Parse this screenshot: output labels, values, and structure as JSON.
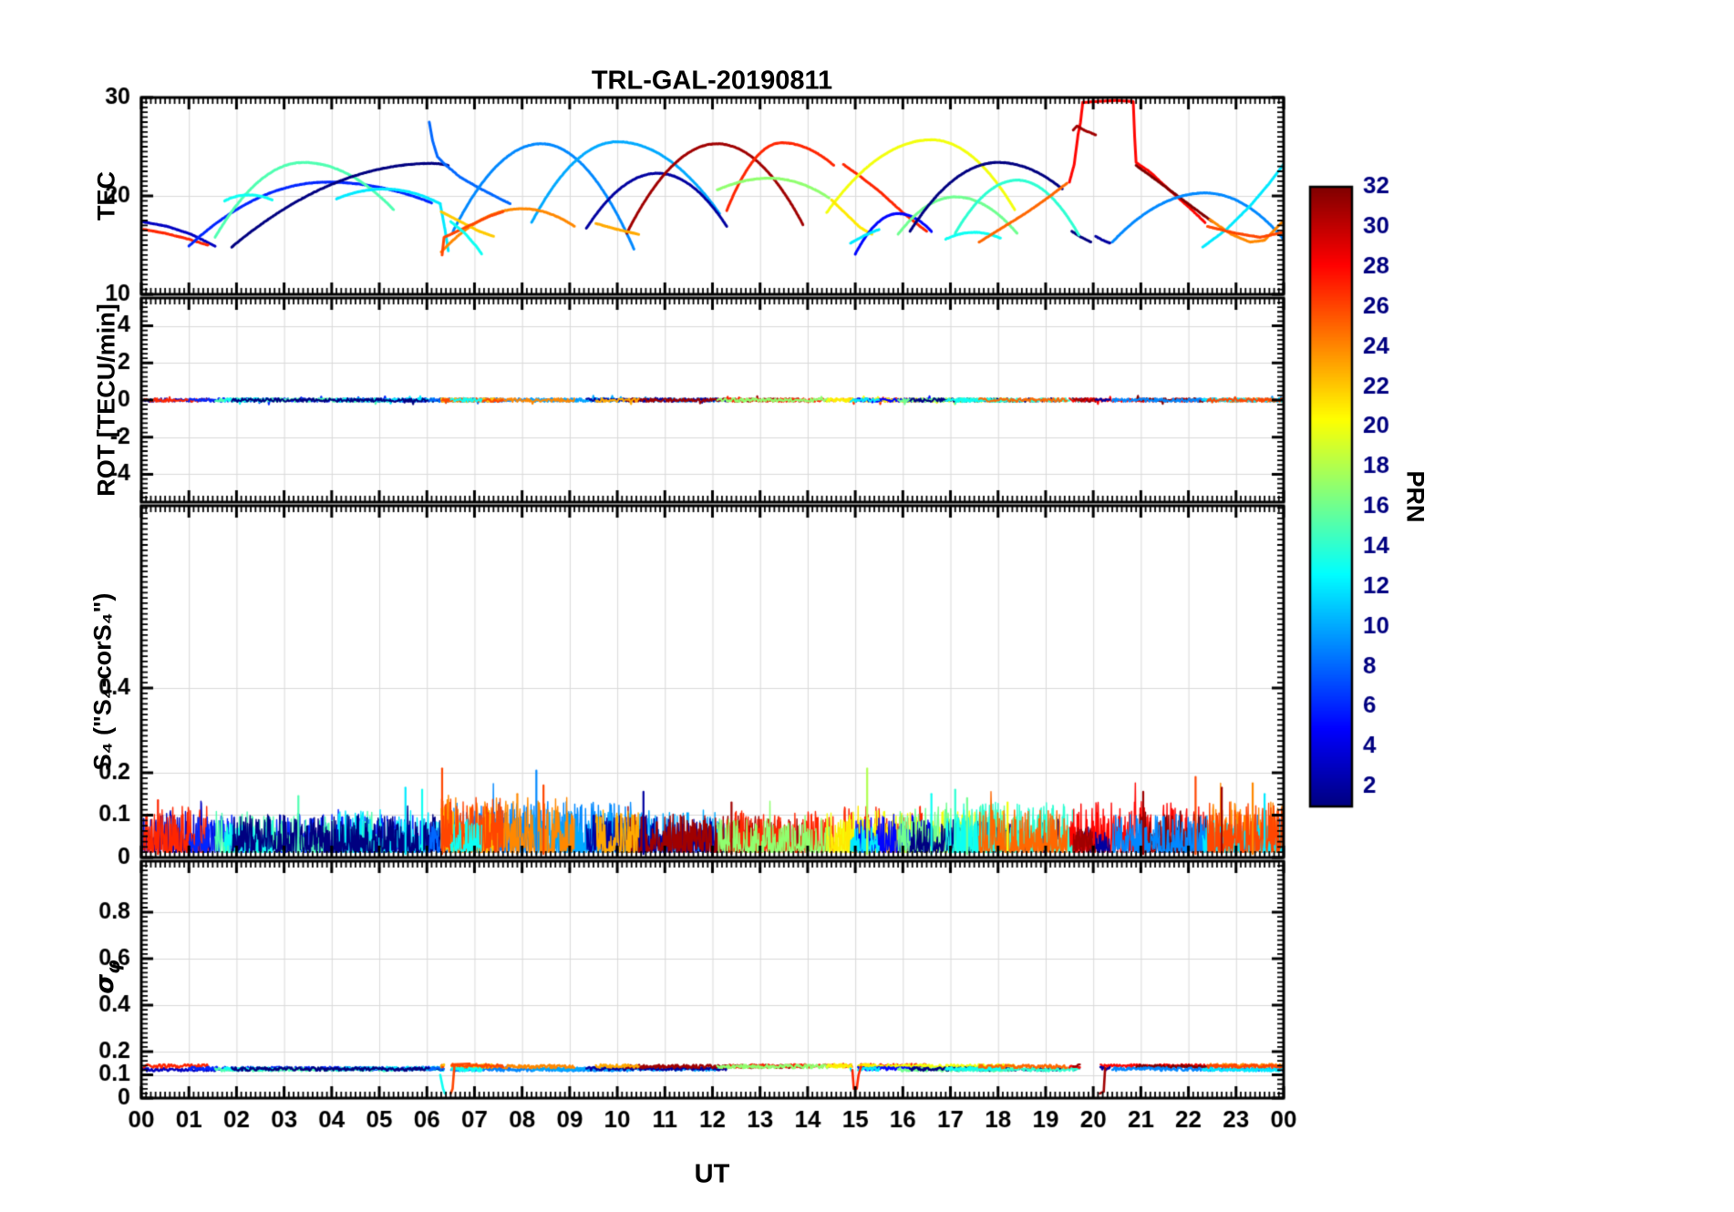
{
  "chart_data": {
    "type": "line",
    "title": "TRL-GAL-20190811",
    "xlabel": "UT",
    "x_range_hours": [
      0,
      24
    ],
    "x_tick_labels": [
      "00",
      "01",
      "02",
      "03",
      "04",
      "05",
      "06",
      "07",
      "08",
      "09",
      "10",
      "11",
      "12",
      "13",
      "14",
      "15",
      "16",
      "17",
      "18",
      "19",
      "20",
      "21",
      "22",
      "23",
      "00"
    ],
    "grid": true,
    "colors": {
      "background": "#ffffff",
      "axis": "#000000",
      "grid": "#d9d9d9"
    },
    "colorbar": {
      "label": "PRN",
      "colormap": "jet",
      "range": [
        1,
        32
      ],
      "ticks": [
        2,
        4,
        6,
        8,
        10,
        12,
        14,
        16,
        18,
        20,
        22,
        24,
        26,
        28,
        30,
        32
      ],
      "tick_labels": [
        "2",
        "4",
        "6",
        "8",
        "10",
        "12",
        "14",
        "16",
        "18",
        "20",
        "22",
        "24",
        "26",
        "28",
        "30",
        "32"
      ]
    },
    "panels": [
      {
        "id": "tec",
        "ylabel": "TEC",
        "ylim": [
          10,
          30
        ],
        "yticks": [
          10,
          20,
          30
        ],
        "ytick_labels": [
          "10",
          "20",
          "30"
        ]
      },
      {
        "id": "rot",
        "ylabel": "ROT [TECU/min]",
        "ylim": [
          -5.5,
          5.5
        ],
        "yticks": [
          -4,
          -2,
          0,
          2,
          4
        ],
        "ytick_labels": [
          "-4",
          "-2",
          "0",
          "2",
          "4"
        ]
      },
      {
        "id": "s4",
        "ylabel": "S₄ (\"S₄-corS₄\")",
        "ylim": [
          0,
          0.83
        ],
        "yticks": [
          0,
          0.1,
          0.2,
          0.4
        ],
        "ytick_labels": [
          "0",
          "0.1",
          "0.2",
          "0.4"
        ]
      },
      {
        "id": "sigma",
        "ylabel_main": "σ",
        "ylabel_sub": "φ",
        "ylim": [
          0,
          1.02
        ],
        "yticks": [
          0,
          0.1,
          0.2,
          0.4,
          0.6,
          0.8
        ],
        "ytick_labels": [
          "0",
          "0.1",
          "0.2",
          "0.4",
          "0.6",
          "0.8"
        ]
      }
    ],
    "arcs": [
      {
        "p": 3,
        "pts": [
          [
            0.0,
            17.4
          ],
          [
            0.55,
            16.9
          ],
          [
            1.05,
            16.1
          ],
          [
            1.55,
            14.9
          ]
        ],
        "a": 0.1
      },
      {
        "p": 27,
        "pts": [
          [
            0.05,
            16.6
          ],
          [
            0.5,
            16.2
          ],
          [
            1.0,
            15.6
          ],
          [
            1.4,
            15.0
          ]
        ],
        "a": 0.11
      },
      {
        "p": 6,
        "t0": 1.0,
        "tp": 3.9,
        "t1": 6.1,
        "y0": 14.9,
        "yp": 21.4,
        "y1": 19.3,
        "a": 0.09
      },
      {
        "p": 15,
        "t0": 1.55,
        "tp": 3.4,
        "t1": 5.3,
        "y0": 15.8,
        "yp": 23.4,
        "y1": 18.6,
        "a": 0.1
      },
      {
        "p": 13,
        "t0": 1.75,
        "tp": 2.25,
        "t1": 2.75,
        "y0": 19.5,
        "yp": 20.1,
        "y1": 19.6,
        "a": 0.07
      },
      {
        "p": 12,
        "t0": 4.1,
        "tp": 5.1,
        "t1": 6.28,
        "y0": 19.7,
        "yp": 20.7,
        "y1": 19.2,
        "a": 0.1
      },
      {
        "p": 12,
        "pts": [
          [
            6.28,
            19.2
          ],
          [
            6.38,
            16.6
          ],
          [
            6.45,
            14.4
          ]
        ],
        "a": 0.07
      },
      {
        "p": 1,
        "t0": 1.9,
        "tp": 6.1,
        "t1": 6.45,
        "y0": 14.8,
        "yp": 23.3,
        "y1": 23.1,
        "a": 0.09
      },
      {
        "p": 8,
        "pts": [
          [
            6.05,
            27.5
          ],
          [
            6.12,
            25.6
          ],
          [
            6.22,
            24.0
          ],
          [
            6.38,
            23.2
          ],
          [
            6.7,
            21.9
          ],
          [
            7.1,
            20.8
          ],
          [
            7.5,
            19.8
          ],
          [
            7.75,
            19.2
          ]
        ],
        "a": 0.1
      },
      {
        "p": 9,
        "t0": 6.55,
        "tp": 8.4,
        "t1": 10.35,
        "y0": 16.4,
        "yp": 25.3,
        "y1": 14.6,
        "a": 0.12
      },
      {
        "p": 10,
        "t0": 8.2,
        "tp": 10.0,
        "t1": 12.15,
        "y0": 17.3,
        "yp": 25.5,
        "y1": 18.2,
        "a": 0.1
      },
      {
        "p": 2,
        "t0": 9.35,
        "tp": 10.85,
        "t1": 12.3,
        "y0": 16.7,
        "yp": 22.3,
        "y1": 16.9,
        "a": 0.09
      },
      {
        "p": 31,
        "t0": 10.2,
        "tp": 12.1,
        "t1": 13.9,
        "y0": 16.2,
        "yp": 25.3,
        "y1": 17.1,
        "a": 0.09
      },
      {
        "p": 27,
        "t0": 12.3,
        "tp": 13.45,
        "t1": 14.55,
        "y0": 18.5,
        "yp": 25.4,
        "y1": 23.1,
        "a": 0.1
      },
      {
        "p": 27,
        "pts": [
          [
            14.75,
            23.2
          ],
          [
            15.1,
            22.0
          ],
          [
            15.5,
            20.5
          ],
          [
            16.0,
            18.3
          ],
          [
            16.5,
            16.4
          ]
        ],
        "a": 0.11
      },
      {
        "p": 17,
        "t0": 12.1,
        "tp": 13.2,
        "t1": 14.45,
        "y0": 20.6,
        "yp": 21.8,
        "y1": 19.8,
        "a": 0.08
      },
      {
        "p": 20,
        "t0": 14.4,
        "tp": 16.6,
        "t1": 18.35,
        "y0": 18.3,
        "yp": 25.7,
        "y1": 18.6,
        "a": 0.1
      },
      {
        "p": 21,
        "pts": [
          [
            14.5,
            19.6
          ],
          [
            14.8,
            18.2
          ],
          [
            15.1,
            16.8
          ],
          [
            15.35,
            16.1
          ]
        ],
        "a": 0.08
      },
      {
        "p": 24,
        "t0": 6.3,
        "tp": 8.0,
        "t1": 9.1,
        "y0": 14.3,
        "yp": 18.7,
        "y1": 16.9,
        "a": 0.13
      },
      {
        "p": 22,
        "pts": [
          [
            6.3,
            18.4
          ],
          [
            6.7,
            17.4
          ],
          [
            7.1,
            16.4
          ],
          [
            7.4,
            15.9
          ]
        ],
        "a": 0.11
      },
      {
        "p": 26,
        "pts": [
          [
            6.32,
            14.0
          ],
          [
            6.36,
            15.8
          ],
          [
            6.5,
            16.1
          ],
          [
            6.9,
            17.0
          ],
          [
            7.3,
            17.9
          ],
          [
            7.6,
            18.4
          ]
        ],
        "a": 0.13
      },
      {
        "p": 13,
        "pts": [
          [
            6.5,
            17.4
          ],
          [
            6.8,
            16.2
          ],
          [
            7.05,
            14.8
          ],
          [
            7.15,
            14.1
          ]
        ],
        "a": 0.08
      },
      {
        "p": 23,
        "pts": [
          [
            9.55,
            17.2
          ],
          [
            10.0,
            16.6
          ],
          [
            10.45,
            16.1
          ]
        ],
        "a": 0.1
      },
      {
        "p": 5,
        "t0": 15.0,
        "tp": 15.9,
        "t1": 16.6,
        "y0": 14.1,
        "yp": 18.2,
        "y1": 16.4,
        "a": 0.09
      },
      {
        "p": 16,
        "t0": 15.9,
        "tp": 17.1,
        "t1": 18.4,
        "y0": 16.1,
        "yp": 19.9,
        "y1": 16.2,
        "a": 0.11
      },
      {
        "p": 1,
        "t0": 16.15,
        "tp": 18.0,
        "t1": 19.35,
        "y0": 16.4,
        "yp": 23.4,
        "y1": 20.7,
        "a": 0.08
      },
      {
        "p": 1,
        "pts": [
          [
            19.55,
            16.4
          ],
          [
            19.75,
            15.8
          ],
          [
            19.95,
            15.3
          ]
        ],
        "a": 0.06
      },
      {
        "p": 14,
        "t0": 17.1,
        "tp": 18.4,
        "t1": 19.7,
        "y0": 16.2,
        "yp": 21.6,
        "y1": 16.0,
        "a": 0.12
      },
      {
        "p": 12,
        "pts": [
          [
            14.9,
            15.2
          ],
          [
            15.2,
            16.0
          ],
          [
            15.5,
            16.6
          ]
        ],
        "a": 0.07
      },
      {
        "p": 13,
        "t0": 16.9,
        "tp": 17.5,
        "t1": 18.05,
        "y0": 15.6,
        "yp": 16.3,
        "y1": 15.7,
        "a": 0.09
      },
      {
        "p": 25,
        "pts": [
          [
            17.6,
            15.3
          ],
          [
            18.1,
            16.8
          ],
          [
            18.6,
            18.3
          ],
          [
            19.1,
            20.0
          ],
          [
            19.45,
            21.3
          ]
        ],
        "a": 0.1
      },
      {
        "p": 28,
        "pts": [
          [
            19.5,
            21.4
          ],
          [
            19.6,
            23.2
          ],
          [
            19.68,
            26.2
          ],
          [
            19.73,
            27.4
          ],
          [
            19.78,
            29.5
          ],
          [
            20.1,
            29.6
          ],
          [
            20.45,
            29.7
          ],
          [
            20.84,
            29.6
          ],
          [
            20.87,
            26.0
          ],
          [
            20.9,
            23.4
          ],
          [
            21.2,
            22.4
          ],
          [
            21.6,
            20.6
          ],
          [
            22.0,
            18.9
          ],
          [
            22.35,
            17.3
          ]
        ],
        "a": 0.12
      },
      {
        "p": 31,
        "pts": [
          [
            19.58,
            26.7
          ],
          [
            19.66,
            27.1
          ],
          [
            19.8,
            26.7
          ],
          [
            19.95,
            26.4
          ],
          [
            20.05,
            26.2
          ]
        ],
        "a": 0.06
      },
      {
        "p": 32,
        "pts": [
          [
            20.9,
            23.1
          ],
          [
            21.3,
            21.7
          ],
          [
            21.8,
            19.9
          ],
          [
            22.3,
            18.1
          ],
          [
            22.5,
            17.4
          ]
        ],
        "a": 0.1
      },
      {
        "p": 9,
        "t0": 20.4,
        "tp": 22.35,
        "t1": 24.0,
        "y0": 15.3,
        "yp": 20.3,
        "y1": 15.6,
        "a": 0.09
      },
      {
        "p": 24,
        "pts": [
          [
            22.45,
            17.6
          ],
          [
            22.9,
            16.1
          ],
          [
            23.3,
            15.3
          ],
          [
            23.6,
            15.5
          ],
          [
            24.0,
            17.5
          ]
        ],
        "a": 0.12
      },
      {
        "p": 12,
        "pts": [
          [
            22.3,
            14.8
          ],
          [
            22.8,
            16.6
          ],
          [
            23.3,
            19.0
          ],
          [
            23.7,
            21.3
          ],
          [
            24.0,
            23.2
          ]
        ],
        "a": 0.08
      },
      {
        "p": 26,
        "pts": [
          [
            22.4,
            16.9
          ],
          [
            23.0,
            16.2
          ],
          [
            23.5,
            15.8
          ],
          [
            24.0,
            16.3
          ]
        ],
        "a": 0.12
      },
      {
        "p": 2,
        "pts": [
          [
            20.05,
            15.9
          ],
          [
            20.2,
            15.5
          ],
          [
            20.35,
            15.2
          ]
        ],
        "a": 0.05
      }
    ],
    "s4_spikes": [
      {
        "t": 0.35,
        "p": 27,
        "v": 0.135
      },
      {
        "t": 3.3,
        "p": 15,
        "v": 0.145
      },
      {
        "t": 5.55,
        "p": 12,
        "v": 0.165
      },
      {
        "t": 5.9,
        "p": 13,
        "v": 0.16
      },
      {
        "t": 6.32,
        "p": 26,
        "v": 0.21
      },
      {
        "t": 7.9,
        "p": 24,
        "v": 0.15
      },
      {
        "t": 8.3,
        "p": 9,
        "v": 0.205
      },
      {
        "t": 8.45,
        "p": 26,
        "v": 0.17
      },
      {
        "t": 10.55,
        "p": 2,
        "v": 0.155
      },
      {
        "t": 12.4,
        "p": 31,
        "v": 0.13
      },
      {
        "t": 15.25,
        "p": 18,
        "v": 0.21
      },
      {
        "t": 16.6,
        "p": 13,
        "v": 0.15
      },
      {
        "t": 17.1,
        "p": 14,
        "v": 0.16
      },
      {
        "t": 17.35,
        "p": 16,
        "v": 0.14
      },
      {
        "t": 18.2,
        "p": 20,
        "v": 0.13
      },
      {
        "t": 21.05,
        "p": 31,
        "v": 0.155
      },
      {
        "t": 22.15,
        "p": 26,
        "v": 0.19
      },
      {
        "t": 22.7,
        "p": 31,
        "v": 0.165
      },
      {
        "t": 23.35,
        "p": 24,
        "v": 0.175
      },
      {
        "t": 23.6,
        "p": 12,
        "v": 0.15
      }
    ],
    "sigma_gaps": [
      [
        6.36,
        6.5
      ],
      [
        14.93,
        15.05
      ],
      [
        19.72,
        20.14
      ]
    ],
    "sigma_features": [
      {
        "p": 13,
        "pts": [
          [
            6.28,
            0.1
          ],
          [
            6.34,
            0.04
          ],
          [
            6.38,
            0.02
          ]
        ]
      },
      {
        "p": 26,
        "pts": [
          [
            6.5,
            0.02
          ],
          [
            6.54,
            0.04
          ],
          [
            6.58,
            0.145
          ],
          [
            6.9,
            0.148
          ]
        ]
      },
      {
        "p": 27,
        "pts": [
          [
            14.94,
            0.12
          ],
          [
            14.97,
            0.04
          ],
          [
            15.03,
            0.04
          ],
          [
            15.07,
            0.1
          ],
          [
            15.12,
            0.135
          ]
        ]
      },
      {
        "p": 31,
        "pts": [
          [
            20.14,
            0.02
          ],
          [
            20.22,
            0.028
          ],
          [
            20.25,
            0.13
          ]
        ]
      }
    ]
  }
}
